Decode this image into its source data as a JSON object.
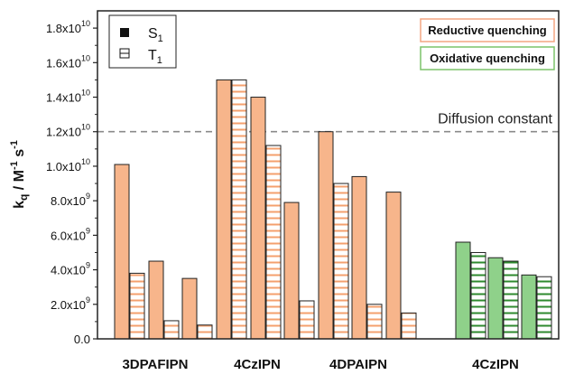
{
  "chart_data": {
    "type": "bar",
    "ylabel": {
      "base": "k",
      "sub": "q",
      "unit": " / M",
      "sup1": "-1",
      "s": " s",
      "sup2": "-1"
    },
    "ylim": [
      0,
      19000000000.0
    ],
    "yticks": [
      {
        "value": 0,
        "mant": "0.0",
        "exp": ""
      },
      {
        "value": 2000000000.0,
        "mant": "2.0x10",
        "exp": "9"
      },
      {
        "value": 4000000000.0,
        "mant": "4.0x10",
        "exp": "9"
      },
      {
        "value": 6000000000.0,
        "mant": "6.0x10",
        "exp": "9"
      },
      {
        "value": 8000000000.0,
        "mant": "8.0x10",
        "exp": "9"
      },
      {
        "value": 10000000000.0,
        "mant": "1.0x10",
        "exp": "10"
      },
      {
        "value": 12000000000.0,
        "mant": "1.2x10",
        "exp": "10"
      },
      {
        "value": 14000000000.0,
        "mant": "1.4x10",
        "exp": "10"
      },
      {
        "value": 16000000000.0,
        "mant": "1.6x10",
        "exp": "10"
      },
      {
        "value": 18000000000.0,
        "mant": "1.8x10",
        "exp": "10"
      }
    ],
    "category_labels": [
      "3DPAFIPN",
      "4CzIPN",
      "4DPAIPN",
      "4CzIPN"
    ],
    "groups": [
      {
        "category": 0,
        "quenching": "Reductive quenching",
        "S1": 10100000000.0,
        "T1": 3800000000.0
      },
      {
        "category": 0,
        "quenching": "Reductive quenching",
        "S1": 4500000000.0,
        "T1": 1050000000.0
      },
      {
        "category": 0,
        "quenching": "Reductive quenching",
        "S1": 3500000000.0,
        "T1": 800000000.0
      },
      {
        "category": 1,
        "quenching": "Reductive quenching",
        "S1": 15000000000.0,
        "T1": 15000000000.0
      },
      {
        "category": 1,
        "quenching": "Reductive quenching",
        "S1": 14000000000.0,
        "T1": 11200000000.0
      },
      {
        "category": 1,
        "quenching": "Reductive quenching",
        "S1": 7900000000.0,
        "T1": 2200000000.0
      },
      {
        "category": 2,
        "quenching": "Reductive quenching",
        "S1": 12000000000.0,
        "T1": 9000000000.0
      },
      {
        "category": 2,
        "quenching": "Reductive quenching",
        "S1": 9400000000.0,
        "T1": 2000000000.0
      },
      {
        "category": 2,
        "quenching": "Reductive quenching",
        "S1": 8500000000.0,
        "T1": 1500000000.0
      },
      {
        "category": 3,
        "quenching": "Oxidative quenching",
        "S1": 5600000000.0,
        "T1": 5000000000.0
      },
      {
        "category": 3,
        "quenching": "Oxidative quenching",
        "S1": 4700000000.0,
        "T1": 4500000000.0
      },
      {
        "category": 3,
        "quenching": "Oxidative quenching",
        "S1": 3700000000.0,
        "T1": 3600000000.0
      }
    ],
    "reference_line": {
      "value": 12000000000.0,
      "label": "Diffusion constant"
    },
    "legend": [
      {
        "label": "S",
        "sub": "1",
        "style": "filled"
      },
      {
        "label": "T",
        "sub": "1",
        "style": "hatched"
      }
    ],
    "quenching_boxes": [
      {
        "label": "Reductive quenching",
        "color": "#f4a582"
      },
      {
        "label": "Oxidative quenching",
        "color": "#7cc36a"
      }
    ],
    "colors": {
      "reductive_fill": "#f7b58b",
      "reductive_hatch": "#f4a06e",
      "oxidative_fill": "#8fd18a",
      "oxidative_hatch": "#2e8a2e"
    },
    "legend_placement": "top-left",
    "grid": false
  }
}
